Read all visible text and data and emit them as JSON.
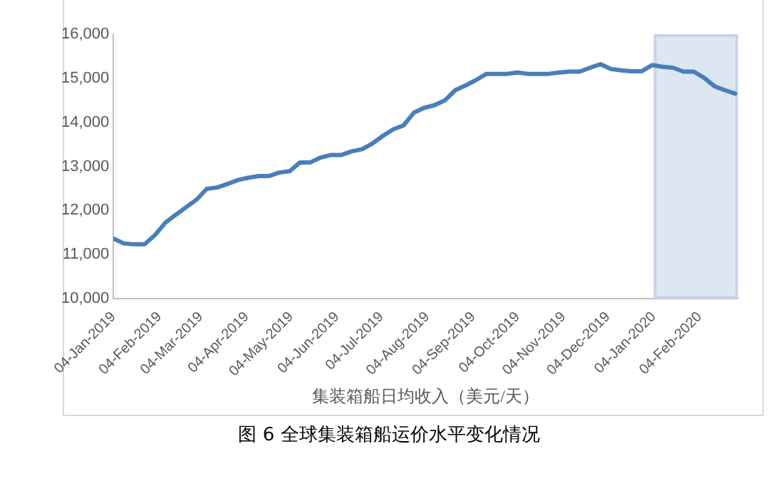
{
  "chart_data": {
    "type": "line",
    "title": "图 6  全球集装箱船运价水平变化情况",
    "xlabel": "集装箱船日均收入（美元/天）",
    "x": [
      "2019-01-04",
      "2019-01-11",
      "2019-01-18",
      "2019-01-25",
      "2019-02-01",
      "2019-02-08",
      "2019-02-15",
      "2019-02-22",
      "2019-03-01",
      "2019-03-08",
      "2019-03-15",
      "2019-03-22",
      "2019-03-29",
      "2019-04-05",
      "2019-04-12",
      "2019-04-19",
      "2019-04-26",
      "2019-05-03",
      "2019-05-10",
      "2019-05-17",
      "2019-05-24",
      "2019-05-31",
      "2019-06-07",
      "2019-06-14",
      "2019-06-21",
      "2019-06-28",
      "2019-07-05",
      "2019-07-12",
      "2019-07-19",
      "2019-07-26",
      "2019-08-02",
      "2019-08-09",
      "2019-08-16",
      "2019-08-23",
      "2019-08-30",
      "2019-09-06",
      "2019-09-13",
      "2019-09-20",
      "2019-09-27",
      "2019-10-04",
      "2019-10-11",
      "2019-10-18",
      "2019-10-25",
      "2019-11-01",
      "2019-11-08",
      "2019-11-15",
      "2019-11-22",
      "2019-11-29",
      "2019-12-06",
      "2019-12-13",
      "2019-12-20",
      "2019-12-27",
      "2020-01-03",
      "2020-01-10",
      "2020-01-17",
      "2020-01-24",
      "2020-01-31",
      "2020-02-07",
      "2020-02-14",
      "2020-02-21",
      "2020-02-28"
    ],
    "series": [
      {
        "color": "#4a7ebb",
        "values": [
          11360,
          11250,
          11230,
          11230,
          11440,
          11720,
          11900,
          12070,
          12240,
          12490,
          12520,
          12600,
          12690,
          12740,
          12780,
          12780,
          12860,
          12890,
          13090,
          13090,
          13200,
          13260,
          13260,
          13340,
          13390,
          13520,
          13690,
          13840,
          13930,
          14220,
          14330,
          14390,
          14500,
          14730,
          14840,
          14960,
          15100,
          15100,
          15100,
          15130,
          15100,
          15100,
          15100,
          15130,
          15150,
          15150,
          15240,
          15320,
          15210,
          15180,
          15160,
          15160,
          15300,
          15260,
          15240,
          15150,
          15150,
          15010,
          14820,
          14730,
          14650
        ]
      }
    ],
    "xlim": [
      "2019-01-04",
      "2020-03-01"
    ],
    "xticks": [
      {
        "value": "2019-01-04",
        "label": "04-Jan-2019"
      },
      {
        "value": "2019-02-04",
        "label": "04-Feb-2019"
      },
      {
        "value": "2019-03-04",
        "label": "04-Mar-2019"
      },
      {
        "value": "2019-04-04",
        "label": "04-Apr-2019"
      },
      {
        "value": "2019-05-04",
        "label": "04-May-2019"
      },
      {
        "value": "2019-06-04",
        "label": "04-Jun-2019"
      },
      {
        "value": "2019-07-04",
        "label": "04-Jul-2019"
      },
      {
        "value": "2019-08-04",
        "label": "04-Aug-2019"
      },
      {
        "value": "2019-09-04",
        "label": "04-Sep-2019"
      },
      {
        "value": "2019-10-04",
        "label": "04-Oct-2019"
      },
      {
        "value": "2019-11-04",
        "label": "04-Nov-2019"
      },
      {
        "value": "2019-12-04",
        "label": "04-Dec-2019"
      },
      {
        "value": "2020-01-04",
        "label": "04-Jan-2020"
      },
      {
        "value": "2020-02-04",
        "label": "04-Feb-2020"
      }
    ],
    "ylim": [
      10000,
      16000
    ],
    "yticks": [
      {
        "value": 10000,
        "label": "10,000"
      },
      {
        "value": 11000,
        "label": "11,000"
      },
      {
        "value": 12000,
        "label": "12,000"
      },
      {
        "value": 13000,
        "label": "13,000"
      },
      {
        "value": 14000,
        "label": "14,000"
      },
      {
        "value": 15000,
        "label": "15,000"
      },
      {
        "value": 16000,
        "label": "16,000"
      }
    ],
    "bands": [
      {
        "axis": "x",
        "from": "2020-01-04",
        "to": "2020-03-01",
        "color": "#dde6f3"
      }
    ],
    "grid": false,
    "legend": false,
    "marker": "none",
    "line_style": "solid"
  }
}
